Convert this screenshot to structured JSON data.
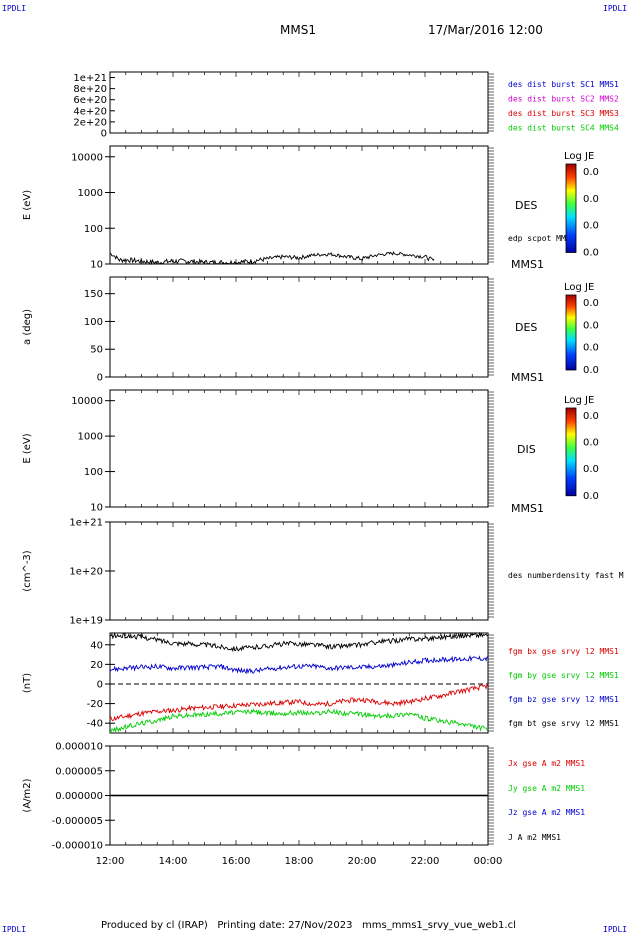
{
  "corner_labels": {
    "top_left": "IPDLI",
    "top_right": "IPDLI",
    "bottom_left": "IPDLI",
    "bottom_right": "IPDLI"
  },
  "header": {
    "title": "MMS1",
    "date": "17/Mar/2016 12:00"
  },
  "footer": {
    "text": "Produced by cl (IRAP)   Printing date: 27/Nov/2023   mms_mms1_srvy_vue_web1.cl"
  },
  "colors": {
    "black": "#000000",
    "blue": "#0000cc",
    "magenta": "#d400d4",
    "red": "#dd0000",
    "green": "#00cc00"
  },
  "chart_data": [
    {
      "type": "line",
      "panel": "dist-burst",
      "yticks": [
        "1e+21",
        "8e+20",
        "6e+20",
        "4e+20",
        "2e+20",
        "0"
      ],
      "ylim": [
        0,
        1.1e+21
      ],
      "dashed_zero": true,
      "legend": [
        {
          "name": "des dist burst SC1 MMS1",
          "color": "#0000cc"
        },
        {
          "name": "des dist burst SC2 MMS2",
          "color": "#d400d4"
        },
        {
          "name": "des dist burst SC3 MMS3",
          "color": "#dd0000"
        },
        {
          "name": "des dist burst SC4 MMS4",
          "color": "#00cc00"
        }
      ]
    },
    {
      "type": "line",
      "panel": "des-energy",
      "ylabel": "E (eV)",
      "yscale": "log",
      "yticks": [
        "10000",
        "1000",
        "100",
        "10"
      ],
      "ylim": [
        10,
        20000
      ],
      "spectrogram_label": "DES",
      "series_label": "edp scpot MMS1",
      "bottom_label": "MMS1",
      "colorbar": {
        "title": "Log JE",
        "ticks": [
          "0.0",
          "0.0",
          "0.0",
          "0.0"
        ]
      },
      "series": [
        {
          "name": "edp scpot MMS1",
          "x": [
            12.0,
            12.3,
            12.6,
            13.0,
            13.5,
            14.0,
            14.5,
            15.0,
            15.5,
            16.0,
            16.5,
            17.0,
            17.5,
            18.0,
            18.5,
            19.0,
            19.5,
            20.0,
            20.5,
            21.0,
            21.5,
            22.0,
            22.3
          ],
          "values": [
            20,
            13,
            13,
            12,
            11,
            12,
            12,
            11,
            11,
            11,
            12,
            14,
            16,
            15,
            18,
            19,
            16,
            14,
            18,
            20,
            18,
            16,
            12
          ]
        }
      ]
    },
    {
      "type": "heatmap",
      "panel": "des-pitch",
      "ylabel": "a (deg)",
      "yticks": [
        "150",
        "100",
        "50",
        "0"
      ],
      "ylim": [
        0,
        180
      ],
      "spectrogram_label": "DES",
      "bottom_label": "MMS1",
      "colorbar": {
        "title": "Log JE",
        "ticks": [
          "0.0",
          "0.0",
          "0.0",
          "0.0"
        ]
      }
    },
    {
      "type": "heatmap",
      "panel": "dis-energy",
      "ylabel": "E (eV)",
      "yscale": "log",
      "yticks": [
        "10000",
        "1000",
        "100",
        "10"
      ],
      "ylim": [
        10,
        20000
      ],
      "spectrogram_label": "DIS",
      "bottom_label": "MMS1",
      "colorbar": {
        "title": "Log JE",
        "ticks": [
          "0.0",
          "0.0",
          "0.0",
          "0.0"
        ]
      }
    },
    {
      "type": "line",
      "panel": "density",
      "ylabel": "(cm^-3)",
      "yscale": "log",
      "yticks": [
        "1e+21",
        "1e+20",
        "1e+19"
      ],
      "ylim": [
        1e+19,
        1e+21
      ],
      "legend": [
        {
          "name": "des numberdensity fast M",
          "color": "#000000"
        }
      ]
    },
    {
      "type": "line",
      "panel": "fgm",
      "ylabel": "(nT)",
      "yticks": [
        "40",
        "20",
        "0",
        "-20",
        "-40"
      ],
      "ylim": [
        -50,
        52
      ],
      "dashed_zero": true,
      "x": [
        12,
        12.5,
        13,
        13.5,
        14,
        14.5,
        15,
        15.5,
        16,
        16.5,
        17,
        17.5,
        18,
        18.5,
        19,
        19.5,
        20,
        20.5,
        21,
        21.5,
        22,
        22.5,
        23,
        23.5,
        24
      ],
      "series": [
        {
          "name": "fgm bx gse srvy l2 MMS1",
          "color": "#dd0000",
          "values": [
            -36,
            -33,
            -30,
            -28,
            -27,
            -25,
            -24,
            -23,
            -22,
            -21,
            -20,
            -19,
            -18,
            -21,
            -20,
            -17,
            -16,
            -18,
            -20,
            -18,
            -15,
            -12,
            -8,
            -5,
            -2
          ]
        },
        {
          "name": "fgm by gse srvy l2 MMS1",
          "color": "#00cc00",
          "values": [
            -48,
            -44,
            -40,
            -37,
            -33,
            -32,
            -31,
            -30,
            -29,
            -28,
            -30,
            -30,
            -29,
            -30,
            -28,
            -30,
            -31,
            -33,
            -32,
            -30,
            -35,
            -38,
            -40,
            -43,
            -46
          ]
        },
        {
          "name": "fgm bz gse srvy l2 MMS1",
          "color": "#0000cc",
          "values": [
            15,
            16,
            17,
            18,
            16,
            17,
            17,
            18,
            14,
            13,
            15,
            17,
            18,
            18,
            16,
            17,
            17,
            18,
            19,
            22,
            24,
            25,
            25,
            26,
            26
          ]
        },
        {
          "name": "fgm bt gse srvy l2 MMS1",
          "color": "#000000",
          "values": [
            49,
            49,
            48,
            45,
            42,
            41,
            40,
            38,
            36,
            37,
            39,
            41,
            41,
            40,
            38,
            39,
            40,
            43,
            44,
            46,
            46,
            48,
            49,
            50,
            50
          ]
        }
      ]
    },
    {
      "type": "line",
      "panel": "current",
      "ylabel": "(A/m2)",
      "yticks": [
        "0.000010",
        "0.000005",
        "0.000000",
        "-0.000005",
        "-0.000010"
      ],
      "ylim": [
        -1e-05,
        1e-05
      ],
      "series": [
        {
          "name": "Jx gse A m2 MMS1",
          "color": "#dd0000",
          "values": [
            0,
            0
          ]
        },
        {
          "name": "Jy gse A m2 MMS1",
          "color": "#00cc00",
          "values": [
            0,
            0
          ]
        },
        {
          "name": "Jz gse A m2 MMS1",
          "color": "#0000cc",
          "values": [
            0,
            0
          ]
        },
        {
          "name": "J A m2 MMS1",
          "color": "#000000",
          "values": [
            0,
            0
          ]
        }
      ],
      "xticks": [
        "12:00",
        "14:00",
        "16:00",
        "18:00",
        "20:00",
        "22:00",
        "00:00"
      ],
      "xlim": [
        12,
        24
      ]
    }
  ]
}
